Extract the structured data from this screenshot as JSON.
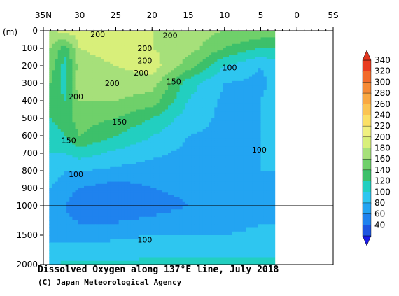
{
  "chart_data": {
    "type": "heatmap",
    "title": "Dissolved Oxygen along 137°E line, July 2018",
    "credit": "(C) Japan Meteorological Agency",
    "x_axis": {
      "ticks": [
        "35N",
        "30",
        "25",
        "20",
        "15",
        "10",
        "5",
        "0",
        "5S"
      ],
      "tick_values": [
        35,
        30,
        25,
        20,
        15,
        10,
        5,
        0,
        -5
      ],
      "range": [
        35,
        -5
      ],
      "position": "top"
    },
    "y_axis": {
      "unit_label": "(m)",
      "upper_ticks": [
        "0",
        "100",
        "200",
        "300",
        "400",
        "500",
        "600",
        "700",
        "800",
        "900",
        "1000"
      ],
      "upper_values": [
        0,
        100,
        200,
        300,
        400,
        500,
        600,
        700,
        800,
        900,
        1000
      ],
      "lower_ticks": [
        "1500",
        "2000"
      ],
      "lower_values": [
        1500,
        2000
      ],
      "range": [
        0,
        2000
      ],
      "scale_break": 1000
    },
    "colorbar": {
      "labels": [
        "340",
        "320",
        "300",
        "280",
        "260",
        "240",
        "220",
        "200",
        "180",
        "160",
        "140",
        "120",
        "100",
        "80",
        "60",
        "40"
      ],
      "values": [
        340,
        320,
        300,
        280,
        260,
        240,
        220,
        200,
        180,
        160,
        140,
        120,
        100,
        80,
        60,
        40
      ],
      "colors": [
        "#e83c20",
        "#f26b2b",
        "#f58a35",
        "#f9a842",
        "#fbc452",
        "#fbe066",
        "#f0f080",
        "#d8ef7a",
        "#a6e07a",
        "#6fd06a",
        "#3dc06a",
        "#22cfc0",
        "#2ec6f0",
        "#23a4f2",
        "#1f82ee",
        "#1e55e0"
      ],
      "under_color": "#1a1ae8",
      "over_color": "#e3361e"
    },
    "depth_bands": [
      {
        "depth": 0,
        "from_lat": 35,
        "to_lat": 3,
        "value_by_lat": [
          [
            34,
            200
          ],
          [
            30,
            210
          ],
          [
            25,
            205
          ],
          [
            20,
            200
          ],
          [
            15,
            190
          ],
          [
            10,
            180
          ],
          [
            5,
            175
          ],
          [
            3,
            175
          ]
        ]
      },
      {
        "depth": 100,
        "value_by_lat": [
          [
            34,
            180
          ],
          [
            32,
            150
          ],
          [
            30,
            200
          ],
          [
            25,
            210
          ],
          [
            20,
            200
          ],
          [
            15,
            190
          ],
          [
            10,
            160
          ],
          [
            5,
            140
          ],
          [
            3,
            140
          ]
        ]
      },
      {
        "depth": 200,
        "value_by_lat": [
          [
            34,
            170
          ],
          [
            32,
            130
          ],
          [
            30,
            190
          ],
          [
            25,
            200
          ],
          [
            20,
            210
          ],
          [
            15,
            170
          ],
          [
            10,
            120
          ],
          [
            5,
            100
          ],
          [
            3,
            110
          ]
        ]
      },
      {
        "depth": 300,
        "value_by_lat": [
          [
            34,
            160
          ],
          [
            32,
            130
          ],
          [
            30,
            200
          ],
          [
            25,
            190
          ],
          [
            20,
            190
          ],
          [
            15,
            130
          ],
          [
            10,
            100
          ],
          [
            5,
            95
          ],
          [
            3,
            105
          ]
        ]
      },
      {
        "depth": 400,
        "value_by_lat": [
          [
            34,
            150
          ],
          [
            32,
            140
          ],
          [
            30,
            180
          ],
          [
            25,
            180
          ],
          [
            20,
            170
          ],
          [
            15,
            120
          ],
          [
            10,
            95
          ],
          [
            5,
            100
          ],
          [
            3,
            110
          ]
        ]
      },
      {
        "depth": 500,
        "value_by_lat": [
          [
            34,
            140
          ],
          [
            32,
            150
          ],
          [
            30,
            170
          ],
          [
            25,
            160
          ],
          [
            20,
            140
          ],
          [
            15,
            110
          ],
          [
            10,
            95
          ],
          [
            5,
            100
          ],
          [
            3,
            105
          ]
        ]
      },
      {
        "depth": 600,
        "value_by_lat": [
          [
            34,
            130
          ],
          [
            32,
            140
          ],
          [
            30,
            160
          ],
          [
            25,
            140
          ],
          [
            20,
            120
          ],
          [
            15,
            100
          ],
          [
            10,
            95
          ],
          [
            5,
            100
          ],
          [
            3,
            100
          ]
        ]
      },
      {
        "depth": 700,
        "value_by_lat": [
          [
            34,
            120
          ],
          [
            32,
            120
          ],
          [
            30,
            130
          ],
          [
            25,
            115
          ],
          [
            20,
            105
          ],
          [
            15,
            95
          ],
          [
            10,
            95
          ],
          [
            5,
            100
          ],
          [
            3,
            100
          ]
        ]
      },
      {
        "depth": 800,
        "value_by_lat": [
          [
            34,
            110
          ],
          [
            32,
            100
          ],
          [
            30,
            100
          ],
          [
            25,
            95
          ],
          [
            20,
            90
          ],
          [
            15,
            90
          ],
          [
            10,
            95
          ],
          [
            5,
            100
          ],
          [
            3,
            100
          ]
        ]
      },
      {
        "depth": 900,
        "value_by_lat": [
          [
            34,
            100
          ],
          [
            32,
            90
          ],
          [
            30,
            80
          ],
          [
            25,
            70
          ],
          [
            20,
            80
          ],
          [
            15,
            85
          ],
          [
            10,
            90
          ],
          [
            5,
            95
          ],
          [
            3,
            95
          ]
        ]
      },
      {
        "depth": 1000,
        "value_by_lat": [
          [
            34,
            95
          ],
          [
            32,
            80
          ],
          [
            30,
            65
          ],
          [
            25,
            60
          ],
          [
            20,
            70
          ],
          [
            15,
            80
          ],
          [
            10,
            85
          ],
          [
            5,
            90
          ],
          [
            3,
            90
          ]
        ]
      },
      {
        "depth": 1500,
        "value_by_lat": [
          [
            34,
            95
          ],
          [
            32,
            90
          ],
          [
            30,
            90
          ],
          [
            25,
            95
          ],
          [
            20,
            100
          ],
          [
            15,
            100
          ],
          [
            10,
            100
          ],
          [
            5,
            105
          ],
          [
            3,
            105
          ]
        ]
      },
      {
        "depth": 2000,
        "value_by_lat": [
          [
            34,
            120
          ],
          [
            30,
            125
          ],
          [
            25,
            125
          ],
          [
            20,
            125
          ],
          [
            15,
            125
          ],
          [
            10,
            125
          ],
          [
            5,
            125
          ],
          [
            3,
            125
          ]
        ]
      }
    ],
    "contour_labels": [
      {
        "text": "200",
        "lat": 27.5,
        "depth": 20
      },
      {
        "text": "200",
        "lat": 17.5,
        "depth": 25
      },
      {
        "text": "200",
        "lat": 21.0,
        "depth": 100
      },
      {
        "text": "200",
        "lat": 21.0,
        "depth": 170
      },
      {
        "text": "200",
        "lat": 21.5,
        "depth": 240
      },
      {
        "text": "200",
        "lat": 25.5,
        "depth": 300
      },
      {
        "text": "200",
        "lat": 30.5,
        "depth": 375
      },
      {
        "text": "150",
        "lat": 17.0,
        "depth": 290
      },
      {
        "text": "150",
        "lat": 24.5,
        "depth": 520
      },
      {
        "text": "150",
        "lat": 31.5,
        "depth": 625
      },
      {
        "text": "100",
        "lat": 9.3,
        "depth": 210
      },
      {
        "text": "100",
        "lat": 5.2,
        "depth": 680
      },
      {
        "text": "100",
        "lat": 30.5,
        "depth": 820
      },
      {
        "text": "100",
        "lat": 21.0,
        "depth": 1580
      }
    ],
    "grid": false,
    "legend_position": "right"
  }
}
